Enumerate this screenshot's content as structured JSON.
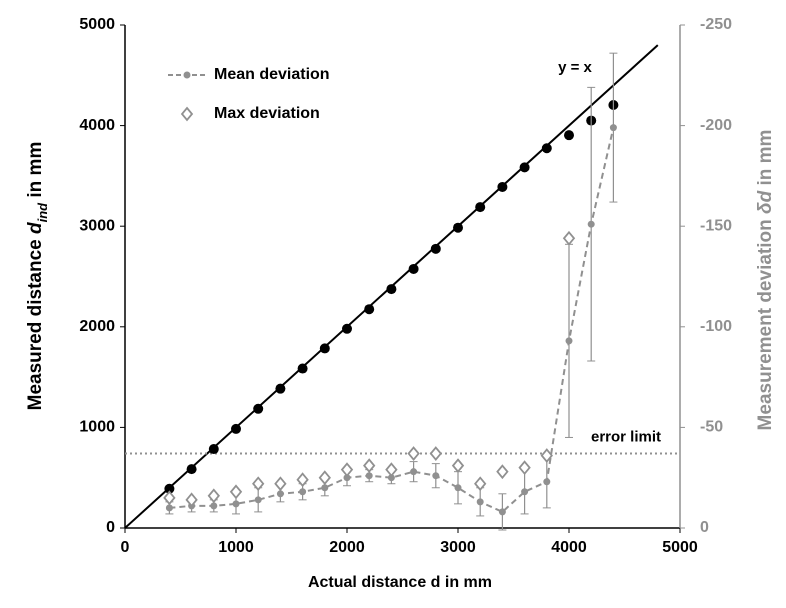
{
  "chart_data": {
    "type": "combo",
    "xlabel": "Actual distance d in mm",
    "ylabel": {
      "text": "Measured distance",
      "symbol": "d",
      "subscript": "ind",
      "unit": "in mm"
    },
    "y2label": {
      "text": "Measurement deviation",
      "symbol": "δd",
      "unit": "in mm"
    },
    "xlim": [
      0,
      5000
    ],
    "xticks": [
      0,
      1000,
      2000,
      3000,
      4000,
      5000
    ],
    "ylim": [
      0,
      5000
    ],
    "yticks": [
      0,
      1000,
      2000,
      3000,
      4000,
      5000
    ],
    "y2lim": [
      0,
      -250
    ],
    "y2ticks": [
      0,
      -50,
      -100,
      -150,
      -200,
      -250
    ],
    "legend": "upper left",
    "identity_line": {
      "label": "y = x",
      "color": "#000000",
      "x": [
        0,
        4800
      ],
      "values": [
        0,
        4800
      ]
    },
    "error_limit": {
      "label": "error limit",
      "value": -37,
      "axis": "y2",
      "color": "#909090"
    },
    "series": [
      {
        "type": "scatter",
        "color": "#000000",
        "x": [
          400,
          600,
          800,
          1000,
          1200,
          1400,
          1600,
          1800,
          2000,
          2200,
          2400,
          2600,
          2800,
          3000,
          3200,
          3400,
          3600,
          3800,
          4000,
          4200,
          4400
        ],
        "values": [
          390,
          585,
          785,
          985,
          1185,
          1385,
          1585,
          1785,
          1980,
          2175,
          2375,
          2575,
          2775,
          2985,
          3190,
          3390,
          3585,
          3775,
          3905,
          4050,
          4205
        ]
      },
      {
        "type": "line",
        "name": "Mean deviation",
        "color": "#909090",
        "axis": "y2",
        "x": [
          400,
          600,
          800,
          1000,
          1200,
          1400,
          1600,
          1800,
          2000,
          2200,
          2400,
          2600,
          2800,
          3000,
          3200,
          3400,
          3600,
          3800,
          4000,
          4200,
          4400
        ],
        "values": [
          -10,
          -11,
          -11,
          -12,
          -14,
          -17,
          -18,
          -20,
          -25,
          -26,
          -25,
          -28,
          -26,
          -20,
          -13,
          -8,
          -18,
          -23,
          -93,
          -151,
          -199
        ],
        "errors": [
          3,
          3,
          3,
          5,
          6,
          4,
          4,
          4,
          4,
          3,
          3,
          5,
          6,
          8,
          7,
          9,
          11,
          13,
          48,
          68,
          37
        ]
      },
      {
        "type": "diamond",
        "name": "Max deviation",
        "color": "#909090",
        "axis": "y2",
        "x": [
          400,
          600,
          800,
          1000,
          1200,
          1400,
          1600,
          1800,
          2000,
          2200,
          2400,
          2600,
          2800,
          3000,
          3200,
          3400,
          3600,
          3800,
          4000
        ],
        "values": [
          -15,
          -14,
          -16,
          -18,
          -22,
          -22,
          -24,
          -25,
          -29,
          -31,
          -29,
          -37,
          -37,
          -31,
          -22,
          -28,
          -30,
          -36,
          -144
        ]
      }
    ]
  }
}
